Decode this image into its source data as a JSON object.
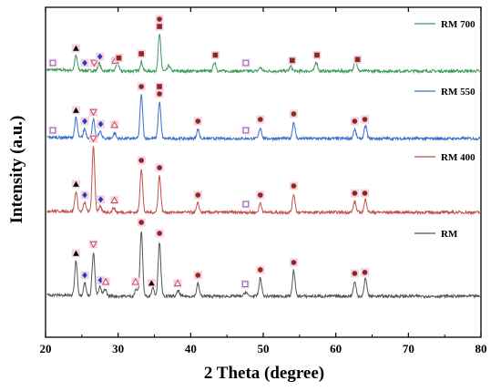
{
  "chart_data": {
    "type": "line",
    "xlabel": "2 Theta (degree)",
    "ylabel": "Intensity (a.u.)",
    "xlim": [
      20,
      80
    ],
    "xticks": [
      20,
      30,
      40,
      50,
      60,
      70,
      80
    ],
    "y_tick_labels": "none",
    "grid": false,
    "legend_placement": "per-trace labels at right, above each pattern",
    "series": [
      {
        "name": "RM 700",
        "color": "#3a9a5c",
        "peaks": [
          {
            "x": 24.2,
            "h": 16
          },
          {
            "x": 27.4,
            "h": 8
          },
          {
            "x": 29.9,
            "h": 10
          },
          {
            "x": 33.2,
            "h": 10
          },
          {
            "x": 35.7,
            "h": 40
          },
          {
            "x": 37.0,
            "h": 6
          },
          {
            "x": 43.3,
            "h": 10
          },
          {
            "x": 49.6,
            "h": 4
          },
          {
            "x": 53.8,
            "h": 5
          },
          {
            "x": 57.3,
            "h": 10
          },
          {
            "x": 62.7,
            "h": 15
          }
        ],
        "markers": [
          {
            "x": 21.0,
            "symbol": "open-square"
          },
          {
            "x": 24.2,
            "symbol": "filled-triangle"
          },
          {
            "x": 25.4,
            "symbol": "filled-diamond"
          },
          {
            "x": 26.7,
            "symbol": "open-inverted-triangle"
          },
          {
            "x": 27.5,
            "symbol": "filled-diamond"
          },
          {
            "x": 29.6,
            "symbol": "open-triangle"
          },
          {
            "x": 30.1,
            "symbol": "filled-square"
          },
          {
            "x": 33.2,
            "symbol": "filled-square"
          },
          {
            "x": 35.7,
            "symbol": "filled-square"
          },
          {
            "x": 35.7,
            "symbol": "filled-circle"
          },
          {
            "x": 43.4,
            "symbol": "filled-square"
          },
          {
            "x": 47.6,
            "symbol": "open-square"
          },
          {
            "x": 54.0,
            "symbol": "filled-square"
          },
          {
            "x": 57.4,
            "symbol": "filled-square"
          },
          {
            "x": 63.0,
            "symbol": "filled-square"
          }
        ]
      },
      {
        "name": "RM 550",
        "color": "#3a6fc9",
        "peaks": [
          {
            "x": 24.2,
            "h": 22
          },
          {
            "x": 25.4,
            "h": 10
          },
          {
            "x": 26.6,
            "h": 20
          },
          {
            "x": 27.5,
            "h": 8
          },
          {
            "x": 29.5,
            "h": 6
          },
          {
            "x": 33.2,
            "h": 48
          },
          {
            "x": 35.7,
            "h": 40
          },
          {
            "x": 41.0,
            "h": 10
          },
          {
            "x": 49.6,
            "h": 12
          },
          {
            "x": 54.2,
            "h": 18
          },
          {
            "x": 62.6,
            "h": 10
          },
          {
            "x": 64.1,
            "h": 14
          }
        ],
        "markers": [
          {
            "x": 21.0,
            "symbol": "open-square"
          },
          {
            "x": 24.2,
            "symbol": "filled-triangle"
          },
          {
            "x": 25.4,
            "symbol": "filled-diamond"
          },
          {
            "x": 26.6,
            "symbol": "open-inverted-triangle"
          },
          {
            "x": 27.6,
            "symbol": "filled-diamond"
          },
          {
            "x": 29.5,
            "symbol": "open-triangle"
          },
          {
            "x": 33.2,
            "symbol": "filled-circle"
          },
          {
            "x": 35.7,
            "symbol": "filled-circle"
          },
          {
            "x": 35.7,
            "symbol": "filled-square"
          },
          {
            "x": 41.0,
            "symbol": "filled-circle"
          },
          {
            "x": 47.6,
            "symbol": "open-square"
          },
          {
            "x": 49.6,
            "symbol": "filled-circle"
          },
          {
            "x": 54.2,
            "symbol": "filled-circle"
          },
          {
            "x": 62.6,
            "symbol": "filled-circle"
          },
          {
            "x": 64.0,
            "symbol": "filled-circle"
          }
        ]
      },
      {
        "name": "RM 400",
        "color": "#c0504d",
        "peaks": [
          {
            "x": 24.2,
            "h": 22
          },
          {
            "x": 25.4,
            "h": 10
          },
          {
            "x": 26.6,
            "h": 72
          },
          {
            "x": 27.5,
            "h": 6
          },
          {
            "x": 29.4,
            "h": 5
          },
          {
            "x": 33.2,
            "h": 48
          },
          {
            "x": 35.7,
            "h": 40
          },
          {
            "x": 41.0,
            "h": 10
          },
          {
            "x": 49.6,
            "h": 10
          },
          {
            "x": 54.2,
            "h": 20
          },
          {
            "x": 62.6,
            "h": 12
          },
          {
            "x": 64.1,
            "h": 14
          }
        ],
        "markers": [
          {
            "x": 24.2,
            "symbol": "filled-triangle"
          },
          {
            "x": 25.4,
            "symbol": "filled-diamond"
          },
          {
            "x": 26.6,
            "symbol": "open-inverted-triangle"
          },
          {
            "x": 27.6,
            "symbol": "filled-diamond"
          },
          {
            "x": 29.5,
            "symbol": "open-triangle"
          },
          {
            "x": 33.2,
            "symbol": "filled-circle"
          },
          {
            "x": 35.7,
            "symbol": "filled-circle"
          },
          {
            "x": 41.0,
            "symbol": "filled-circle"
          },
          {
            "x": 47.6,
            "symbol": "open-square"
          },
          {
            "x": 49.6,
            "symbol": "filled-circle"
          },
          {
            "x": 54.2,
            "symbol": "filled-circle"
          },
          {
            "x": 62.6,
            "symbol": "filled-circle"
          },
          {
            "x": 64.0,
            "symbol": "filled-circle"
          }
        ]
      },
      {
        "name": "RM",
        "color": "#555555",
        "peaks": [
          {
            "x": 24.2,
            "h": 38
          },
          {
            "x": 25.4,
            "h": 14
          },
          {
            "x": 26.6,
            "h": 48
          },
          {
            "x": 27.5,
            "h": 10
          },
          {
            "x": 28.2,
            "h": 8
          },
          {
            "x": 32.5,
            "h": 8
          },
          {
            "x": 33.2,
            "h": 72
          },
          {
            "x": 34.8,
            "h": 10
          },
          {
            "x": 35.7,
            "h": 60
          },
          {
            "x": 38.3,
            "h": 6
          },
          {
            "x": 41.0,
            "h": 14
          },
          {
            "x": 47.6,
            "h": 5
          },
          {
            "x": 49.6,
            "h": 20
          },
          {
            "x": 54.2,
            "h": 28
          },
          {
            "x": 62.6,
            "h": 16
          },
          {
            "x": 64.1,
            "h": 20
          }
        ],
        "markers": [
          {
            "x": 24.2,
            "symbol": "filled-triangle"
          },
          {
            "x": 25.4,
            "symbol": "filled-diamond"
          },
          {
            "x": 26.6,
            "symbol": "open-inverted-triangle"
          },
          {
            "x": 27.6,
            "symbol": "filled-diamond"
          },
          {
            "x": 28.3,
            "symbol": "open-triangle"
          },
          {
            "x": 32.4,
            "symbol": "open-triangle"
          },
          {
            "x": 33.2,
            "symbol": "filled-circle"
          },
          {
            "x": 34.6,
            "symbol": "filled-triangle"
          },
          {
            "x": 35.7,
            "symbol": "filled-circle"
          },
          {
            "x": 38.2,
            "symbol": "open-triangle"
          },
          {
            "x": 41.0,
            "symbol": "filled-circle"
          },
          {
            "x": 47.5,
            "symbol": "open-square"
          },
          {
            "x": 49.6,
            "symbol": "filled-circle"
          },
          {
            "x": 54.2,
            "symbol": "filled-circle"
          },
          {
            "x": 62.6,
            "symbol": "filled-circle"
          },
          {
            "x": 64.0,
            "symbol": "filled-circle"
          }
        ]
      }
    ],
    "marker_colors": {
      "filled-circle": "#8b2a1a",
      "filled-square": "#8b2a1a",
      "filled-triangle": "#000000",
      "filled-diamond": "#1f3fb8",
      "open-inverted-triangle": "#c0504d",
      "open-triangle": "#c0504d",
      "open-square": "#8b5fb8",
      "highlight": "#f6d0e6"
    }
  }
}
